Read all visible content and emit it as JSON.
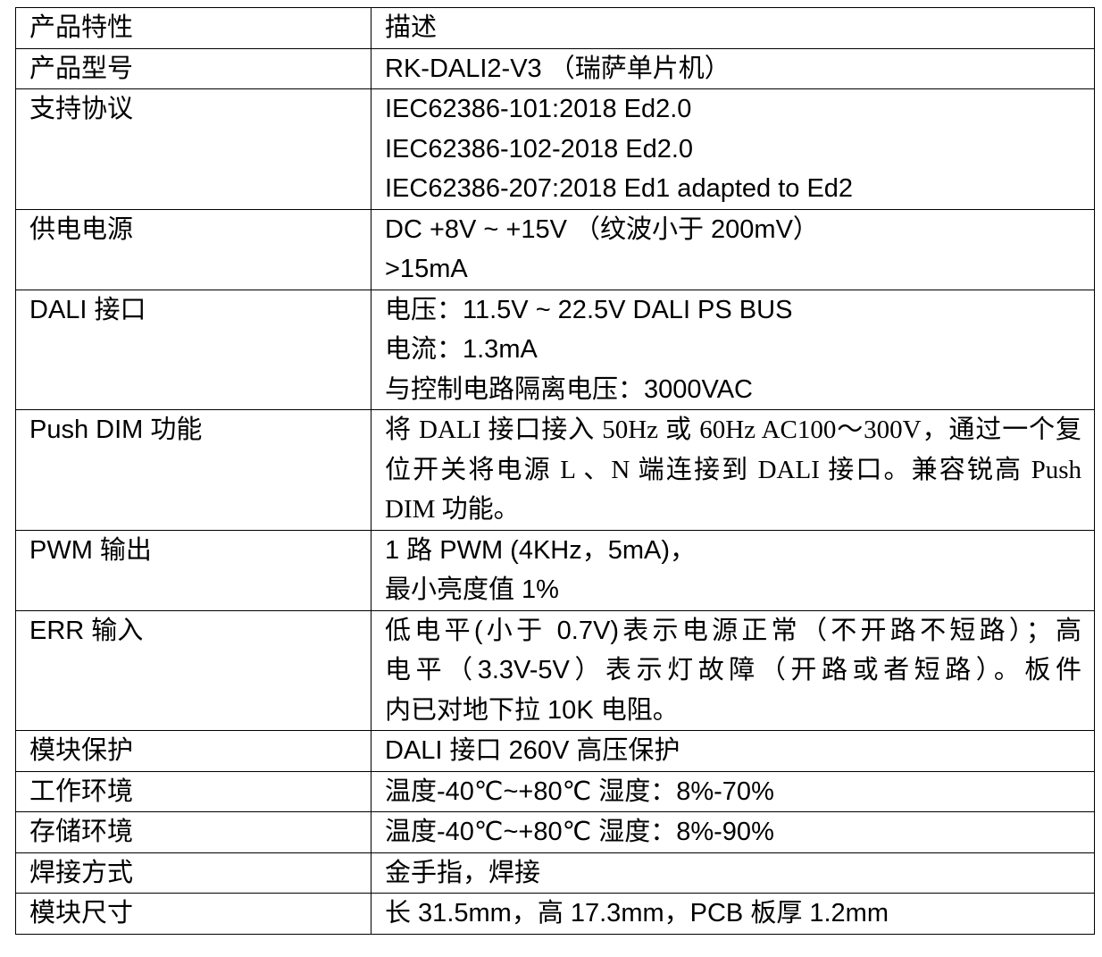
{
  "table": {
    "rows": [
      {
        "key": "产品特性",
        "lines": [
          "描述"
        ]
      },
      {
        "key": "产品型号",
        "lines": [
          "RK-DALI2-V3 （瑞萨单片机）"
        ]
      },
      {
        "key": "支持协议",
        "lines": [
          "IEC62386-101:2018 Ed2.0",
          "IEC62386-102-2018 Ed2.0",
          "IEC62386-207:2018 Ed1 adapted to Ed2"
        ]
      },
      {
        "key": "供电电源",
        "lines": [
          "DC +8V ~ +15V （纹波小于 200mV）",
          ">15mA"
        ]
      },
      {
        "key": "DALI 接口",
        "lines": [
          "电压：11.5V ~ 22.5V DALI PS BUS",
          "电流：1.3mA",
          "与控制电路隔离电压：3000VAC"
        ]
      },
      {
        "key": "Push DIM 功能",
        "lines": [
          "将 DALI 接口接入 50Hz 或 60Hz AC100～300V，通过一个复",
          "位开关将电源 L 、N 端连接到 DALI 接口。兼容锐高 Push",
          "DIM 功能。"
        ],
        "style": "serif"
      },
      {
        "key": "PWM 输出",
        "lines": [
          "1 路 PWM (4KHz，5mA)，",
          "最小亮度值 1%"
        ]
      },
      {
        "key": "ERR 输入",
        "lines": [
          "低电平(小于 0.7V)表示电源正常（不开路不短路）；高",
          "电平（3.3V-5V）表示灯故障（开路或者短路）。板件",
          "内已对地下拉 10K 电阻。"
        ],
        "style": "justify"
      },
      {
        "key": "模块保护",
        "lines": [
          "DALI 接口 260V 高压保护"
        ]
      },
      {
        "key": "工作环境",
        "lines": [
          "温度-40℃~+80℃ 湿度：8%-70%"
        ]
      },
      {
        "key": "存储环境",
        "lines": [
          "温度-40℃~+80℃ 湿度：8%-90%"
        ]
      },
      {
        "key": "焊接方式",
        "lines": [
          "金手指，焊接"
        ]
      },
      {
        "key": "模块尺寸",
        "lines": [
          "长 31.5mm，高 17.3mm，PCB 板厚 1.2mm"
        ]
      }
    ]
  }
}
